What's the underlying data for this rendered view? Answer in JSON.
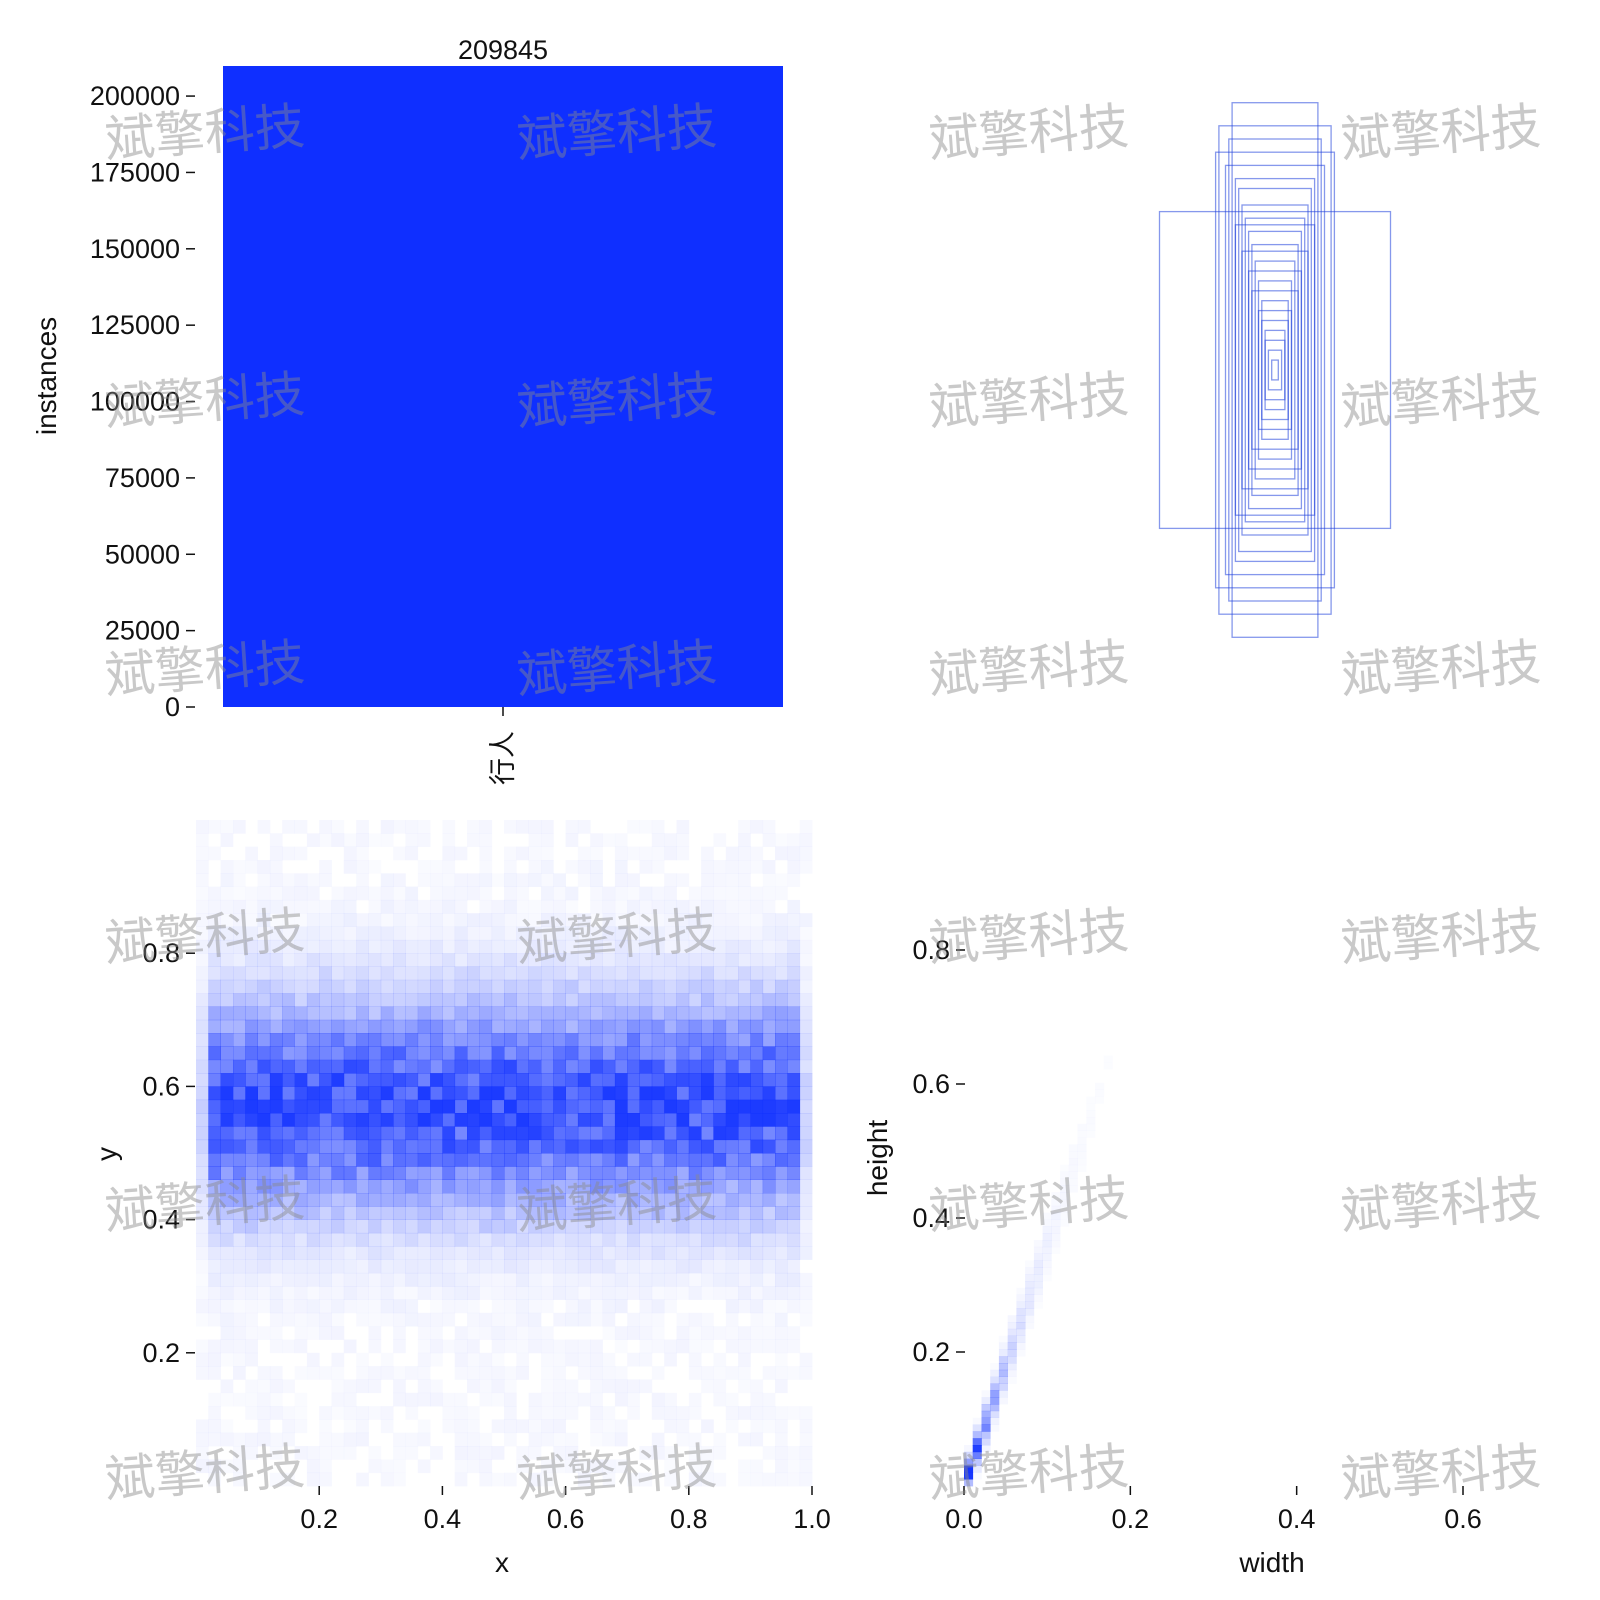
{
  "watermark": "斌擎科技",
  "colors": {
    "bar": "#0f2fff",
    "heat": "#1030ff",
    "box": "#2244dd",
    "text": "#111111"
  },
  "chart_data": [
    {
      "type": "bar",
      "categories": [
        "行人"
      ],
      "values": [
        209845
      ],
      "bar_label": "209845",
      "ylabel": "instances",
      "xlabel": "",
      "ylim": [
        0,
        209845
      ],
      "yticks": [
        0,
        25000,
        50000,
        75000,
        100000,
        125000,
        150000,
        175000,
        200000
      ],
      "ytick_labels": [
        "0",
        "25000",
        "50000",
        "75000",
        "100000",
        "125000",
        "150000",
        "175000",
        "200000"
      ]
    },
    {
      "type": "other",
      "description_type": "bounding-box overlay",
      "boxes": [
        {
          "w": 0.35,
          "h": 0.48
        },
        {
          "w": 0.13,
          "h": 0.81
        },
        {
          "w": 0.17,
          "h": 0.74
        },
        {
          "w": 0.14,
          "h": 0.7
        },
        {
          "w": 0.18,
          "h": 0.66
        },
        {
          "w": 0.15,
          "h": 0.62
        },
        {
          "w": 0.12,
          "h": 0.58
        },
        {
          "w": 0.11,
          "h": 0.55
        },
        {
          "w": 0.1,
          "h": 0.5
        },
        {
          "w": 0.09,
          "h": 0.46
        },
        {
          "w": 0.12,
          "h": 0.44
        },
        {
          "w": 0.08,
          "h": 0.42
        },
        {
          "w": 0.07,
          "h": 0.38
        },
        {
          "w": 0.1,
          "h": 0.36
        },
        {
          "w": 0.06,
          "h": 0.33
        },
        {
          "w": 0.08,
          "h": 0.3
        },
        {
          "w": 0.05,
          "h": 0.27
        },
        {
          "w": 0.07,
          "h": 0.24
        },
        {
          "w": 0.04,
          "h": 0.21
        },
        {
          "w": 0.05,
          "h": 0.18
        },
        {
          "w": 0.04,
          "h": 0.15
        },
        {
          "w": 0.03,
          "h": 0.12
        },
        {
          "w": 0.03,
          "h": 0.09
        },
        {
          "w": 0.02,
          "h": 0.06
        },
        {
          "w": 0.01,
          "h": 0.03
        }
      ]
    },
    {
      "type": "heatmap",
      "xlabel": "x",
      "ylabel": "y",
      "xlim": [
        0.0,
        1.0
      ],
      "ylim": [
        0.0,
        1.0
      ],
      "xticks": [
        0.2,
        0.4,
        0.6,
        0.8,
        1.0
      ],
      "xtick_labels": [
        "0.2",
        "0.4",
        "0.6",
        "0.8",
        "1.0"
      ],
      "yticks": [
        0.2,
        0.4,
        0.6,
        0.8
      ],
      "ytick_labels": [
        "0.2",
        "0.4",
        "0.6",
        "0.8"
      ],
      "peak_y": 0.57
    },
    {
      "type": "heatmap",
      "xlabel": "width",
      "ylabel": "height",
      "xlim": [
        0.0,
        0.7
      ],
      "ylim": [
        0.0,
        0.9
      ],
      "xticks": [
        0.0,
        0.2,
        0.4,
        0.6
      ],
      "xtick_labels": [
        "0.0",
        "0.2",
        "0.4",
        "0.6"
      ],
      "yticks": [
        0.2,
        0.4,
        0.6,
        0.8
      ],
      "ytick_labels": [
        "0.2",
        "0.4",
        "0.6",
        "0.8"
      ],
      "ratio_h_over_w": 3.6
    }
  ]
}
